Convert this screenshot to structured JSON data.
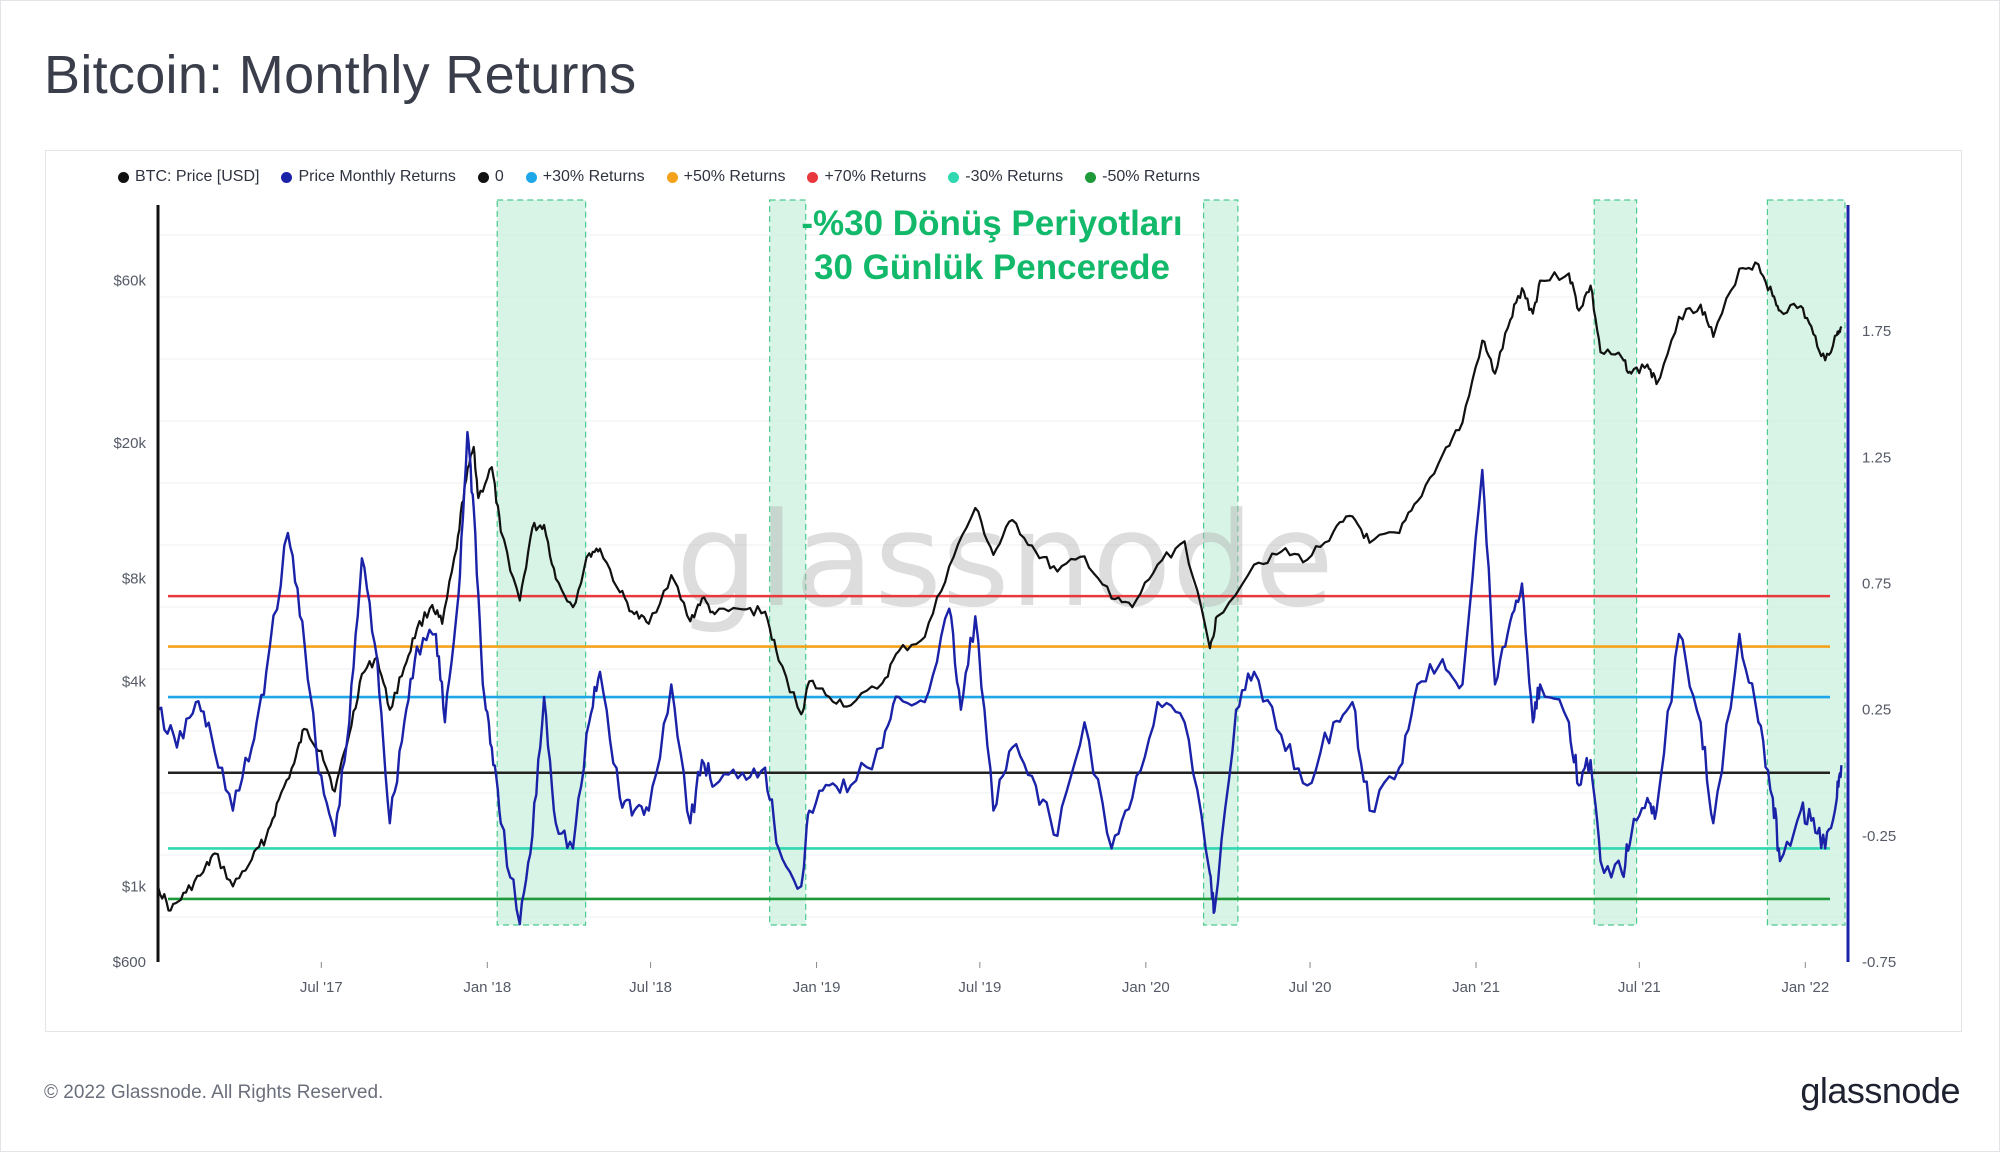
{
  "page": {
    "title": "Bitcoin: Monthly Returns",
    "copyright": "© 2022 Glassnode. All Rights Reserved.",
    "logo_text": "glassnode",
    "watermark": "glassnode"
  },
  "annotation": {
    "line1": "-%30 Dönüş Periyotları",
    "line2": "30 Günlük Pencerede",
    "color": "#12b96a"
  },
  "legend": [
    {
      "label": "BTC: Price [USD]",
      "color": "#111111"
    },
    {
      "label": "Price Monthly Returns",
      "color": "#1a22a8"
    },
    {
      "label": "0",
      "color": "#111111"
    },
    {
      "label": "+30% Returns",
      "color": "#1ea7e8"
    },
    {
      "label": "+50% Returns",
      "color": "#f5a21b"
    },
    {
      "label": "+70% Returns",
      "color": "#e8383d"
    },
    {
      "label": "-30% Returns",
      "color": "#2fd8b0"
    },
    {
      "label": "-50% Returns",
      "color": "#1f9a3a"
    }
  ],
  "chart_data": {
    "type": "line",
    "title": "Bitcoin: Monthly Returns",
    "x_axis": {
      "type": "date",
      "range": [
        "2017-01-01",
        "2022-02-14"
      ],
      "tick_labels": [
        "Jul '17",
        "Jan '18",
        "Jul '18",
        "Jan '19",
        "Jul '19",
        "Jan '20",
        "Jul '20",
        "Jan '21",
        "Jul '21",
        "Jan '22"
      ],
      "tick_dates": [
        "2017-07-01",
        "2018-01-01",
        "2018-07-01",
        "2019-01-01",
        "2019-07-01",
        "2020-01-01",
        "2020-07-01",
        "2021-01-01",
        "2021-07-01",
        "2022-01-01"
      ]
    },
    "y_axis_left": {
      "scale": "log",
      "range": [
        600,
        100000
      ],
      "tick_labels": [
        "$600",
        "$1k",
        "$4k",
        "$8k",
        "$20k",
        "$60k"
      ],
      "tick_values": [
        600,
        1000,
        4000,
        8000,
        20000,
        60000
      ]
    },
    "y_axis_right": {
      "scale": "linear",
      "range": [
        -0.75,
        2.25
      ],
      "tick_labels": [
        "-0.75",
        "-0.25",
        "0.25",
        "0.75",
        "1.25",
        "1.75"
      ],
      "tick_values": [
        -0.75,
        -0.25,
        0.25,
        0.75,
        1.25,
        1.75
      ]
    },
    "grid": true,
    "legend_position": "top-left",
    "highlight_periods": [
      {
        "start": "2018-01-12",
        "end": "2018-04-20"
      },
      {
        "start": "2018-11-10",
        "end": "2018-12-20"
      },
      {
        "start": "2020-03-05",
        "end": "2020-04-12"
      },
      {
        "start": "2021-05-12",
        "end": "2021-06-28"
      },
      {
        "start": "2021-11-20",
        "end": "2022-02-14"
      }
    ],
    "reference_lines": [
      {
        "name": "0",
        "value": 0,
        "color": "#222222"
      },
      {
        "name": "+30% Returns",
        "value": 0.3,
        "color": "#1ea7e8"
      },
      {
        "name": "+50% Returns",
        "value": 0.5,
        "color": "#f5a21b"
      },
      {
        "name": "+70% Returns",
        "value": 0.7,
        "color": "#e8383d"
      },
      {
        "name": "-30% Returns",
        "value": -0.3,
        "color": "#2fd8b0"
      },
      {
        "name": "-50% Returns",
        "value": -0.5,
        "color": "#1f9a3a"
      }
    ],
    "series": [
      {
        "name": "BTC: Price [USD]",
        "axis": "left",
        "color": "#111111",
        "points": [
          [
            "2017-01-01",
            1000
          ],
          [
            "2017-01-15",
            850
          ],
          [
            "2017-02-01",
            960
          ],
          [
            "2017-02-20",
            1100
          ],
          [
            "2017-03-05",
            1250
          ],
          [
            "2017-03-25",
            1000
          ],
          [
            "2017-04-15",
            1200
          ],
          [
            "2017-05-01",
            1400
          ],
          [
            "2017-05-15",
            1800
          ],
          [
            "2017-06-01",
            2300
          ],
          [
            "2017-06-12",
            2900
          ],
          [
            "2017-07-01",
            2500
          ],
          [
            "2017-07-16",
            1900
          ],
          [
            "2017-08-01",
            2800
          ],
          [
            "2017-08-15",
            4200
          ],
          [
            "2017-09-01",
            4700
          ],
          [
            "2017-09-15",
            3300
          ],
          [
            "2017-10-01",
            4400
          ],
          [
            "2017-10-15",
            5700
          ],
          [
            "2017-11-01",
            6700
          ],
          [
            "2017-11-12",
            5900
          ],
          [
            "2017-11-28",
            9800
          ],
          [
            "2017-12-07",
            15000
          ],
          [
            "2017-12-17",
            19500
          ],
          [
            "2017-12-22",
            13800
          ],
          [
            "2018-01-06",
            17000
          ],
          [
            "2018-01-16",
            11000
          ],
          [
            "2018-02-06",
            6900
          ],
          [
            "2018-02-20",
            11300
          ],
          [
            "2018-03-05",
            11500
          ],
          [
            "2018-03-18",
            8000
          ],
          [
            "2018-04-06",
            6600
          ],
          [
            "2018-04-24",
            9500
          ],
          [
            "2018-05-06",
            9800
          ],
          [
            "2018-05-28",
            7300
          ],
          [
            "2018-06-13",
            6300
          ],
          [
            "2018-06-29",
            5900
          ],
          [
            "2018-07-24",
            8200
          ],
          [
            "2018-08-14",
            6000
          ],
          [
            "2018-08-27",
            7000
          ],
          [
            "2018-09-10",
            6300
          ],
          [
            "2018-10-11",
            6500
          ],
          [
            "2018-11-05",
            6400
          ],
          [
            "2018-11-20",
            4600
          ],
          [
            "2018-12-15",
            3200
          ],
          [
            "2018-12-24",
            4000
          ],
          [
            "2019-01-15",
            3600
          ],
          [
            "2019-02-08",
            3400
          ],
          [
            "2019-03-15",
            3950
          ],
          [
            "2019-04-02",
            4900
          ],
          [
            "2019-05-01",
            5400
          ],
          [
            "2019-05-28",
            8700
          ],
          [
            "2019-06-26",
            12900
          ],
          [
            "2019-07-16",
            9400
          ],
          [
            "2019-08-06",
            11900
          ],
          [
            "2019-09-01",
            9600
          ],
          [
            "2019-09-25",
            8400
          ],
          [
            "2019-10-25",
            9300
          ],
          [
            "2019-11-24",
            7000
          ],
          [
            "2019-12-17",
            6600
          ],
          [
            "2020-01-14",
            8800
          ],
          [
            "2020-02-13",
            10300
          ],
          [
            "2020-03-12",
            5000
          ],
          [
            "2020-03-20",
            6200
          ],
          [
            "2020-04-30",
            8800
          ],
          [
            "2020-05-30",
            9600
          ],
          [
            "2020-06-28",
            9100
          ],
          [
            "2020-07-27",
            11000
          ],
          [
            "2020-08-17",
            12200
          ],
          [
            "2020-09-05",
            10200
          ],
          [
            "2020-10-08",
            10900
          ],
          [
            "2020-10-28",
            13500
          ],
          [
            "2020-11-25",
            18500
          ],
          [
            "2020-12-17",
            23000
          ],
          [
            "2021-01-08",
            40000
          ],
          [
            "2021-01-22",
            32000
          ],
          [
            "2021-02-08",
            46000
          ],
          [
            "2021-02-21",
            57000
          ],
          [
            "2021-03-05",
            48000
          ],
          [
            "2021-03-13",
            60000
          ],
          [
            "2021-04-14",
            63000
          ],
          [
            "2021-04-25",
            49000
          ],
          [
            "2021-05-08",
            58000
          ],
          [
            "2021-05-19",
            37000
          ],
          [
            "2021-06-12",
            35500
          ],
          [
            "2021-06-22",
            32000
          ],
          [
            "2021-07-10",
            34000
          ],
          [
            "2021-07-20",
            29800
          ],
          [
            "2021-08-14",
            47000
          ],
          [
            "2021-09-07",
            51000
          ],
          [
            "2021-09-21",
            41000
          ],
          [
            "2021-10-20",
            65000
          ],
          [
            "2021-11-10",
            67000
          ],
          [
            "2021-11-26",
            54000
          ],
          [
            "2021-12-04",
            49000
          ],
          [
            "2021-12-27",
            50500
          ],
          [
            "2022-01-10",
            41800
          ],
          [
            "2022-01-23",
            35000
          ],
          [
            "2022-02-05",
            41500
          ],
          [
            "2022-02-10",
            44000
          ]
        ]
      },
      {
        "name": "Price Monthly Returns",
        "axis": "right",
        "color": "#1a22a8",
        "points": [
          [
            "2017-01-01",
            0.25
          ],
          [
            "2017-01-22",
            0.1
          ],
          [
            "2017-02-12",
            0.28
          ],
          [
            "2017-03-01",
            0.15
          ],
          [
            "2017-03-25",
            -0.15
          ],
          [
            "2017-04-15",
            0.1
          ],
          [
            "2017-05-01",
            0.4
          ],
          [
            "2017-05-25",
            0.95
          ],
          [
            "2017-06-10",
            0.6
          ],
          [
            "2017-06-28",
            0.0
          ],
          [
            "2017-07-16",
            -0.25
          ],
          [
            "2017-08-01",
            0.2
          ],
          [
            "2017-08-15",
            0.85
          ],
          [
            "2017-09-01",
            0.45
          ],
          [
            "2017-09-15",
            -0.2
          ],
          [
            "2017-10-01",
            0.2
          ],
          [
            "2017-10-15",
            0.5
          ],
          [
            "2017-11-05",
            0.55
          ],
          [
            "2017-11-15",
            0.2
          ],
          [
            "2017-11-30",
            0.7
          ],
          [
            "2017-12-10",
            1.35
          ],
          [
            "2017-12-17",
            1.05
          ],
          [
            "2017-12-27",
            0.35
          ],
          [
            "2018-01-06",
            0.1
          ],
          [
            "2018-01-16",
            -0.2
          ],
          [
            "2018-02-06",
            -0.6
          ],
          [
            "2018-02-20",
            -0.25
          ],
          [
            "2018-03-05",
            0.3
          ],
          [
            "2018-03-18",
            -0.2
          ],
          [
            "2018-04-06",
            -0.3
          ],
          [
            "2018-04-24",
            0.2
          ],
          [
            "2018-05-06",
            0.4
          ],
          [
            "2018-05-28",
            -0.1
          ],
          [
            "2018-06-13",
            -0.15
          ],
          [
            "2018-06-29",
            -0.15
          ],
          [
            "2018-07-24",
            0.35
          ],
          [
            "2018-08-14",
            -0.2
          ],
          [
            "2018-08-27",
            0.05
          ],
          [
            "2018-09-10",
            -0.05
          ],
          [
            "2018-10-11",
            0.0
          ],
          [
            "2018-11-05",
            0.02
          ],
          [
            "2018-11-20",
            -0.3
          ],
          [
            "2018-12-15",
            -0.45
          ],
          [
            "2018-12-24",
            -0.15
          ],
          [
            "2019-01-15",
            -0.05
          ],
          [
            "2019-02-08",
            -0.05
          ],
          [
            "2019-03-15",
            0.1
          ],
          [
            "2019-04-02",
            0.3
          ],
          [
            "2019-05-01",
            0.28
          ],
          [
            "2019-05-28",
            0.65
          ],
          [
            "2019-06-10",
            0.25
          ],
          [
            "2019-06-26",
            0.62
          ],
          [
            "2019-07-16",
            -0.15
          ],
          [
            "2019-08-06",
            0.1
          ],
          [
            "2019-09-01",
            -0.05
          ],
          [
            "2019-09-25",
            -0.25
          ],
          [
            "2019-10-25",
            0.2
          ],
          [
            "2019-11-24",
            -0.3
          ],
          [
            "2019-12-17",
            -0.1
          ],
          [
            "2020-01-14",
            0.28
          ],
          [
            "2020-02-13",
            0.2
          ],
          [
            "2020-03-12",
            -0.4
          ],
          [
            "2020-03-17",
            -0.55
          ],
          [
            "2020-04-10",
            0.25
          ],
          [
            "2020-04-30",
            0.4
          ],
          [
            "2020-05-30",
            0.15
          ],
          [
            "2020-06-28",
            -0.05
          ],
          [
            "2020-07-27",
            0.2
          ],
          [
            "2020-08-17",
            0.28
          ],
          [
            "2020-09-05",
            -0.15
          ],
          [
            "2020-10-08",
            0.02
          ],
          [
            "2020-10-28",
            0.35
          ],
          [
            "2020-11-25",
            0.45
          ],
          [
            "2020-12-17",
            0.35
          ],
          [
            "2021-01-08",
            1.2
          ],
          [
            "2021-01-22",
            0.35
          ],
          [
            "2021-02-08",
            0.6
          ],
          [
            "2021-02-21",
            0.75
          ],
          [
            "2021-03-05",
            0.2
          ],
          [
            "2021-03-13",
            0.35
          ],
          [
            "2021-04-14",
            0.2
          ],
          [
            "2021-04-25",
            -0.05
          ],
          [
            "2021-05-08",
            0.05
          ],
          [
            "2021-05-19",
            -0.35
          ],
          [
            "2021-06-12",
            -0.4
          ],
          [
            "2021-06-22",
            -0.25
          ],
          [
            "2021-07-10",
            -0.1
          ],
          [
            "2021-07-20",
            -0.15
          ],
          [
            "2021-08-14",
            0.55
          ],
          [
            "2021-09-07",
            0.2
          ],
          [
            "2021-09-21",
            -0.2
          ],
          [
            "2021-10-20",
            0.55
          ],
          [
            "2021-11-10",
            0.2
          ],
          [
            "2021-11-26",
            -0.1
          ],
          [
            "2021-12-04",
            -0.35
          ],
          [
            "2021-12-27",
            -0.15
          ],
          [
            "2022-01-10",
            -0.18
          ],
          [
            "2022-01-23",
            -0.3
          ],
          [
            "2022-02-05",
            -0.1
          ],
          [
            "2022-02-10",
            0.03
          ]
        ]
      }
    ]
  }
}
